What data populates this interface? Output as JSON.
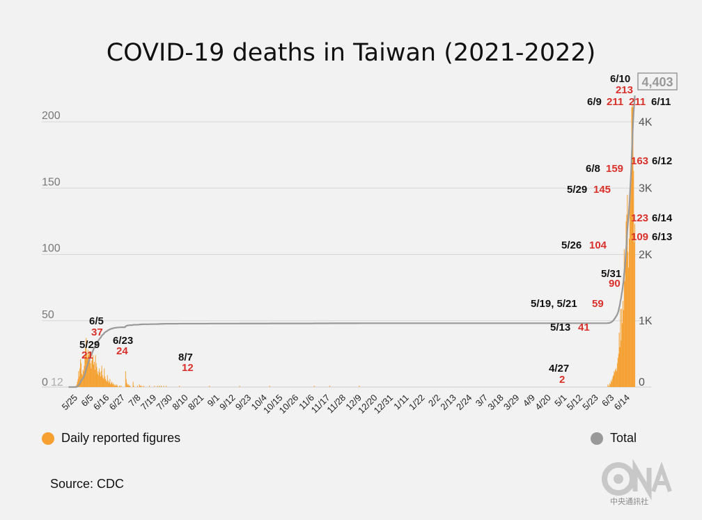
{
  "title": "COVID-19 deaths in Taiwan (2021-2022)",
  "source": "Source: CDC",
  "logo_text": "中央通訊社",
  "legend": {
    "daily": "Daily reported figures",
    "total": "Total",
    "daily_color": "#f5a030",
    "total_color": "#999999"
  },
  "chart_data": {
    "type": "bar",
    "left_axis": {
      "ticks": [
        {
          "v": 0,
          "label": "0"
        },
        {
          "v": 50,
          "label": "50"
        },
        {
          "v": 100,
          "label": "100"
        },
        {
          "v": 150,
          "label": "150"
        },
        {
          "v": 200,
          "label": "200"
        }
      ],
      "range": [
        0,
        220
      ]
    },
    "right_axis": {
      "ticks": [
        {
          "v": 0,
          "label": "0"
        },
        {
          "v": 1000,
          "label": "1K"
        },
        {
          "v": 2000,
          "label": "2K"
        },
        {
          "v": 3000,
          "label": "3K"
        },
        {
          "v": 4000,
          "label": "4K"
        }
      ],
      "range": [
        0,
        4400
      ]
    },
    "x_ticks": [
      "5/25",
      "6/5",
      "6/16",
      "6/27",
      "7/8",
      "7/19",
      "7/30",
      "8/10",
      "8/21",
      "9/1",
      "9/12",
      "9/23",
      "10/4",
      "10/15",
      "10/26",
      "11/6",
      "11/17",
      "11/28",
      "12/9",
      "12/20",
      "12/31",
      "1/11",
      "1/22",
      "2/2",
      "2/13",
      "2/24",
      "3/7",
      "3/18",
      "3/29",
      "4/9",
      "4/20",
      "5/1",
      "5/12",
      "5/23",
      "6/3",
      "6/14"
    ],
    "start_labels": [
      "0",
      "12"
    ],
    "total_label": "4,403",
    "total_final": 4403,
    "series": [
      {
        "name": "Daily reported figures",
        "kind": "bar",
        "values": [
          0,
          0,
          0,
          0,
          0,
          0,
          0,
          0,
          0,
          0,
          0,
          0,
          1,
          2,
          4,
          6,
          12,
          8,
          14,
          21,
          18,
          10,
          9,
          13,
          12,
          16,
          24,
          30,
          37,
          26,
          22,
          28,
          24,
          27,
          25,
          18,
          14,
          20,
          22,
          24,
          17,
          19,
          13,
          24,
          18,
          15,
          10,
          12,
          9,
          14,
          11,
          8,
          12,
          16,
          9,
          7,
          6,
          14,
          8,
          6,
          5,
          4,
          9,
          5,
          3,
          4,
          6,
          2,
          3,
          4,
          2,
          3,
          2,
          1,
          2,
          1,
          1,
          2,
          1,
          0,
          0,
          1,
          1,
          0,
          1,
          0,
          0,
          0,
          0,
          0,
          0,
          12,
          6,
          3,
          2,
          1,
          2,
          1,
          1,
          0,
          0,
          0,
          0,
          4,
          1,
          0,
          0,
          0,
          0,
          0,
          1,
          0,
          0,
          2,
          1,
          1,
          0,
          1,
          0,
          0,
          1,
          0,
          0,
          0,
          0,
          0,
          0,
          0,
          0,
          1,
          0,
          0,
          0,
          0,
          0,
          0,
          0,
          1,
          0,
          0,
          0,
          0,
          1,
          0,
          0,
          1,
          0,
          0,
          1,
          0,
          0,
          0,
          1,
          0,
          0,
          0,
          1,
          0,
          0,
          0,
          0,
          0,
          0,
          0,
          0,
          0,
          0,
          0,
          0,
          0,
          0,
          0,
          0,
          0,
          0,
          0,
          0,
          1,
          0,
          0,
          0,
          0,
          0,
          0,
          0,
          0,
          0,
          0,
          0,
          0,
          0,
          0,
          0,
          0,
          0,
          0,
          0,
          0,
          0,
          0,
          0,
          0,
          0,
          0,
          0,
          0,
          0,
          0,
          0,
          0,
          0,
          0,
          0,
          0,
          0,
          0,
          0,
          0,
          0,
          0,
          0,
          0,
          0,
          0,
          0,
          1,
          0,
          0,
          0,
          0,
          0,
          0,
          0,
          0,
          0,
          0,
          0,
          0,
          0,
          0,
          0,
          0,
          0,
          0,
          0,
          0,
          0,
          0,
          0,
          0,
          0,
          0,
          0,
          0,
          0,
          0,
          0,
          0,
          0,
          0,
          0,
          0,
          0,
          0,
          0,
          0,
          0,
          0,
          0,
          0,
          0,
          0,
          0,
          1,
          0,
          0,
          0,
          0,
          0,
          0,
          0,
          0,
          0,
          0,
          0,
          0,
          0,
          0,
          0,
          0,
          0,
          0,
          0,
          0,
          0,
          0,
          0,
          0,
          0,
          0,
          0,
          0,
          0,
          0,
          0,
          0,
          0,
          0,
          0,
          0,
          0,
          0,
          0,
          0,
          0,
          0,
          0,
          0,
          0,
          0,
          0,
          1,
          0,
          0,
          0,
          0,
          0,
          0,
          0,
          0,
          0,
          0,
          0,
          0,
          0,
          0,
          0,
          0,
          0,
          0,
          0,
          0,
          0,
          0,
          0,
          0,
          0,
          0,
          0,
          0,
          0,
          0,
          0,
          0,
          0,
          0,
          0,
          0,
          0,
          0,
          0,
          0,
          0,
          0,
          0,
          0,
          0,
          0,
          0,
          0,
          0,
          0,
          0,
          0,
          0,
          0,
          0,
          0,
          0,
          0,
          0,
          0,
          0,
          0,
          0,
          0,
          0,
          0,
          0,
          0,
          0,
          0,
          1,
          0,
          0,
          0,
          0,
          0,
          0,
          0,
          0,
          0,
          0,
          0,
          0,
          0,
          0,
          0,
          0,
          0,
          0,
          0,
          0,
          0,
          0,
          0,
          0,
          1,
          0,
          0,
          0,
          0,
          0,
          0,
          0,
          0,
          0,
          0,
          0,
          0,
          0,
          0,
          0,
          0,
          0,
          0,
          0,
          0,
          0,
          0,
          0,
          0,
          0,
          0,
          0,
          0,
          0,
          0,
          0,
          0,
          0,
          0,
          0,
          0,
          0,
          0,
          0,
          0,
          0,
          0,
          0,
          0,
          0,
          0,
          1,
          0,
          0,
          0,
          0,
          0,
          0,
          0,
          0,
          0,
          0,
          0,
          0,
          0,
          0,
          0,
          0,
          0,
          0,
          0,
          0,
          0,
          0,
          0,
          0,
          0,
          0,
          0,
          0,
          0,
          0,
          0,
          0,
          0,
          0,
          0,
          0,
          0,
          0,
          0,
          0,
          0,
          0,
          0,
          0,
          0,
          0,
          0,
          0,
          0,
          0,
          0,
          0,
          0,
          0,
          0,
          0,
          0,
          0,
          0,
          0,
          0,
          0,
          0,
          0,
          0,
          0,
          0,
          0,
          0,
          0,
          0,
          0,
          0,
          0,
          0,
          0,
          0,
          0,
          0,
          0,
          0,
          0,
          0,
          0,
          0,
          0,
          0,
          0,
          0,
          0,
          0,
          0,
          0,
          0,
          0,
          0,
          0,
          0,
          0,
          0,
          0,
          0,
          0,
          0,
          0,
          0,
          0,
          0,
          0,
          0,
          0,
          0,
          0,
          0,
          0,
          0,
          0,
          0,
          0,
          0,
          0,
          0,
          0,
          0,
          0,
          0,
          0,
          0,
          0,
          0,
          0,
          0,
          0,
          0,
          0,
          0,
          0,
          0,
          0,
          0,
          0,
          0,
          0,
          0,
          0,
          0,
          0,
          0,
          0,
          0,
          0,
          0,
          0,
          0,
          0,
          0,
          0,
          0,
          0,
          0,
          0,
          0,
          0,
          0,
          0,
          0,
          0,
          0,
          0,
          0,
          0,
          0,
          0,
          0,
          0,
          0,
          0,
          0,
          0,
          0,
          0,
          0,
          0,
          0,
          0,
          0,
          0,
          0,
          0,
          0,
          0,
          0,
          0,
          0,
          0,
          0,
          0,
          0,
          0,
          0,
          0,
          0,
          0,
          0,
          0,
          0,
          0,
          0,
          0,
          0,
          0,
          0,
          0,
          0,
          0,
          0,
          0,
          0,
          0,
          0,
          0,
          0,
          0,
          0,
          0,
          0,
          0,
          0,
          0,
          0,
          0,
          0,
          0,
          0,
          0,
          0,
          0,
          0,
          0,
          0,
          0,
          0,
          0,
          0,
          0,
          0,
          0,
          0,
          0,
          0,
          0,
          0,
          0,
          0,
          0,
          0,
          0,
          0,
          0,
          0,
          0,
          0,
          0,
          0,
          0,
          0,
          0,
          0,
          0,
          0,
          0,
          0,
          0,
          0,
          0,
          0,
          0,
          0,
          0,
          0,
          0,
          0,
          0,
          0,
          0,
          0,
          0,
          0,
          0,
          0,
          0,
          0,
          0,
          0,
          0,
          0,
          0,
          0,
          0,
          0,
          0,
          0,
          0,
          0,
          0,
          0,
          0,
          0,
          0,
          0,
          0,
          0,
          0,
          0,
          0,
          0,
          0,
          0,
          0,
          0,
          0,
          0,
          0,
          0,
          0,
          0,
          0,
          0,
          0,
          0,
          0,
          0,
          0,
          0,
          0,
          0,
          0,
          0,
          0,
          0,
          0,
          0,
          0,
          0,
          0,
          0,
          0,
          0,
          0,
          0,
          0,
          0,
          0,
          0,
          0,
          0,
          0,
          0,
          0,
          0,
          0,
          0,
          0,
          0,
          0,
          0,
          0,
          0,
          0,
          0,
          0,
          0,
          0,
          0,
          0,
          0,
          0,
          0,
          0,
          0,
          0,
          0,
          0,
          0,
          0,
          0,
          0,
          0,
          0,
          0,
          0,
          0,
          0,
          0,
          0,
          0,
          2,
          1,
          0,
          3,
          2,
          5,
          4,
          6,
          8,
          9,
          12,
          11,
          13,
          14,
          12,
          18,
          22,
          25,
          41,
          30,
          59,
          35,
          59,
          48,
          65,
          58,
          104,
          80,
          95,
          125,
          130,
          145,
          102,
          90,
          112,
          150,
          155,
          159,
          211,
          213,
          211,
          163,
          109,
          123
        ],
        "labels": [
          {
            "date": "5/29",
            "value": "21",
            "i": 19
          },
          {
            "date": "6/5",
            "value": "37",
            "i": 28
          },
          {
            "date": "6/23",
            "value": "24",
            "i": 26
          },
          {
            "date": "8/7",
            "value": "12",
            "i": 91
          },
          {
            "date": "4/27",
            "value": "2",
            "i": 780
          },
          {
            "date": "5/13",
            "value": "41",
            "i": 798
          },
          {
            "date": "5/19, 5/21",
            "value": "59",
            "i": 800
          },
          {
            "date": "5/26",
            "value": "104",
            "i": 806
          },
          {
            "date": "5/29",
            "value": "145",
            "i": 811
          },
          {
            "date": "5/31",
            "value": "90",
            "i": 813
          },
          {
            "date": "6/8",
            "value": "159",
            "i": 817
          },
          {
            "date": "6/9",
            "value": "211",
            "i": 818
          },
          {
            "date": "6/10",
            "value": "213",
            "i": 819
          },
          {
            "date": "6/11",
            "value": "211",
            "i": 820
          },
          {
            "date": "6/12",
            "value": "163",
            "i": 821
          },
          {
            "date": "6/13",
            "value": "109",
            "i": 822
          },
          {
            "date": "6/14",
            "value": "123",
            "i": 823
          }
        ]
      },
      {
        "name": "Total",
        "kind": "line"
      }
    ]
  }
}
